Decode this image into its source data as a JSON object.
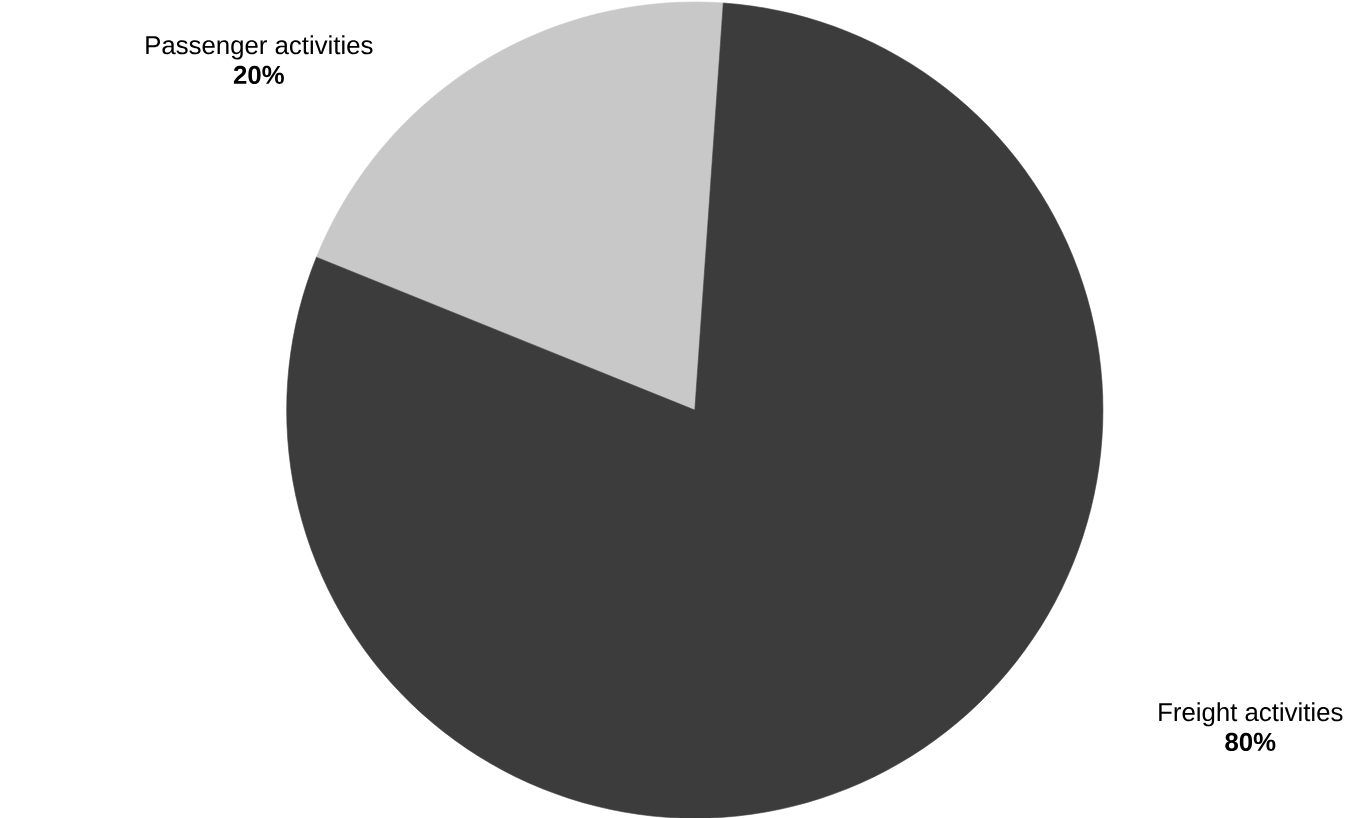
{
  "chart_data": {
    "type": "pie",
    "categories": [
      "Passenger activities",
      "Freight activities"
    ],
    "values": [
      20,
      80
    ],
    "colors": [
      "#c8c8c8",
      "#3c3c3c"
    ],
    "value_labels": [
      "20%",
      "80%"
    ]
  }
}
